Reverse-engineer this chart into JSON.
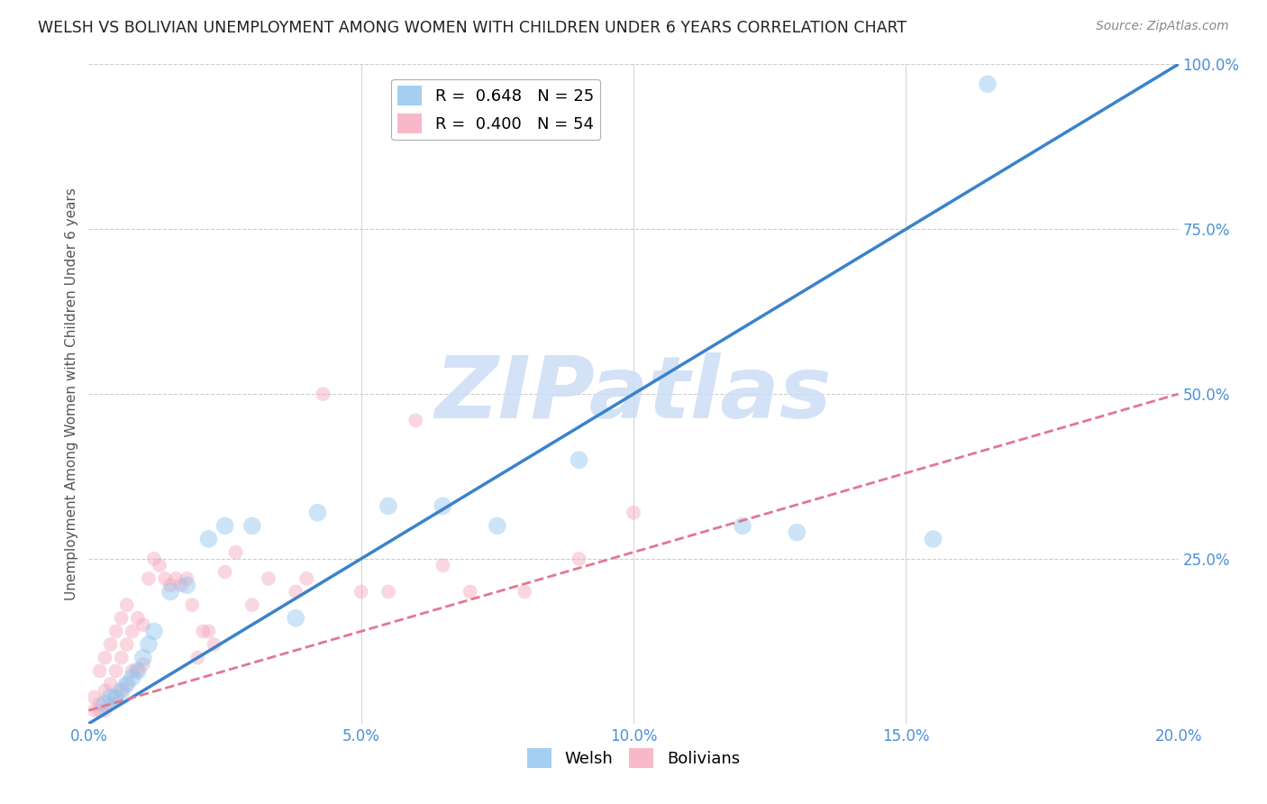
{
  "title": "WELSH VS BOLIVIAN UNEMPLOYMENT AMONG WOMEN WITH CHILDREN UNDER 6 YEARS CORRELATION CHART",
  "source": "Source: ZipAtlas.com",
  "ylabel": "Unemployment Among Women with Children Under 6 years",
  "x_min": 0.0,
  "x_max": 0.2,
  "y_min": 0.0,
  "y_max": 1.0,
  "welsh_R": 0.648,
  "welsh_N": 25,
  "bolivian_R": 0.4,
  "bolivian_N": 54,
  "welsh_color": "#8ec4ee",
  "bolivian_color": "#f5a8bc",
  "welsh_line_color": "#3a82cc",
  "bolivian_line_color": "#e07890",
  "watermark_color": "#ccddf5",
  "grid_color": "#cccccc",
  "axis_tick_color": "#4a90d9",
  "title_color": "#222222",
  "source_color": "#888888",
  "welsh_x": [
    0.003,
    0.004,
    0.005,
    0.006,
    0.007,
    0.008,
    0.009,
    0.01,
    0.011,
    0.012,
    0.015,
    0.018,
    0.022,
    0.025,
    0.03,
    0.038,
    0.042,
    0.055,
    0.065,
    0.075,
    0.09,
    0.12,
    0.13,
    0.155,
    0.165
  ],
  "welsh_y": [
    0.03,
    0.04,
    0.04,
    0.05,
    0.06,
    0.07,
    0.08,
    0.1,
    0.12,
    0.14,
    0.2,
    0.21,
    0.28,
    0.3,
    0.3,
    0.16,
    0.32,
    0.33,
    0.33,
    0.3,
    0.4,
    0.3,
    0.29,
    0.28,
    0.97
  ],
  "bolivian_x": [
    0.001,
    0.001,
    0.002,
    0.002,
    0.002,
    0.003,
    0.003,
    0.003,
    0.004,
    0.004,
    0.004,
    0.005,
    0.005,
    0.005,
    0.006,
    0.006,
    0.006,
    0.007,
    0.007,
    0.007,
    0.008,
    0.008,
    0.009,
    0.009,
    0.01,
    0.01,
    0.011,
    0.012,
    0.013,
    0.014,
    0.015,
    0.016,
    0.017,
    0.018,
    0.019,
    0.02,
    0.021,
    0.022,
    0.023,
    0.025,
    0.027,
    0.03,
    0.033,
    0.038,
    0.04,
    0.043,
    0.05,
    0.055,
    0.06,
    0.065,
    0.07,
    0.08,
    0.09,
    0.1
  ],
  "bolivian_y": [
    0.02,
    0.04,
    0.02,
    0.03,
    0.08,
    0.02,
    0.05,
    0.1,
    0.03,
    0.06,
    0.12,
    0.04,
    0.08,
    0.14,
    0.05,
    0.1,
    0.16,
    0.06,
    0.12,
    0.18,
    0.08,
    0.14,
    0.08,
    0.16,
    0.09,
    0.15,
    0.22,
    0.25,
    0.24,
    0.22,
    0.21,
    0.22,
    0.21,
    0.22,
    0.18,
    0.1,
    0.14,
    0.14,
    0.12,
    0.23,
    0.26,
    0.18,
    0.22,
    0.2,
    0.22,
    0.5,
    0.2,
    0.2,
    0.46,
    0.24,
    0.2,
    0.2,
    0.25,
    0.32
  ],
  "xtick_vals": [
    0.0,
    0.05,
    0.1,
    0.15,
    0.2
  ],
  "xtick_labels": [
    "0.0%",
    "5.0%",
    "10.0%",
    "15.0%",
    "20.0%"
  ],
  "ytick_right_vals": [
    0.0,
    0.25,
    0.5,
    0.75,
    1.0
  ],
  "ytick_right_labels": [
    "",
    "25.0%",
    "50.0%",
    "75.0%",
    "100.0%"
  ],
  "welsh_trend": [
    0.0,
    0.0,
    0.2,
    1.0
  ],
  "bolivian_trend": [
    0.0,
    0.02,
    0.2,
    0.5
  ],
  "marker_size_welsh": 200,
  "marker_size_bolivian": 130,
  "marker_alpha": 0.45
}
